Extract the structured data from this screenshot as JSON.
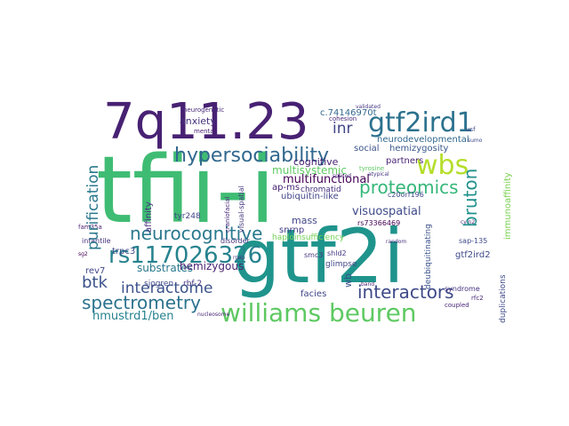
{
  "words": [
    {
      "text": "tfii-i",
      "color": "#3fbc73",
      "rotated": false
    },
    {
      "text": "gtf2i",
      "color": "#1f948c",
      "rotated": false
    },
    {
      "text": "7q11.23",
      "color": "#482173",
      "rotated": false
    },
    {
      "text": "williams beuren",
      "color": "#5ec962",
      "rotated": false
    },
    {
      "text": "gtf2ird1",
      "color": "#2c728e",
      "rotated": false
    },
    {
      "text": "hypersociability",
      "color": "#31688e",
      "rotated": false
    },
    {
      "text": "wbs",
      "color": "#b5de2b",
      "rotated": false
    },
    {
      "text": "rs117026326",
      "color": "#26828e",
      "rotated": false
    },
    {
      "text": "neurocognitive",
      "color": "#2a788e",
      "rotated": false
    },
    {
      "text": "proteomics",
      "color": "#35b779",
      "rotated": false
    },
    {
      "text": "bruton",
      "color": "#21918c",
      "rotated": false
    },
    {
      "text": "interactors",
      "color": "#3e4a89",
      "rotated": false
    },
    {
      "text": "spectrometry",
      "color": "#2c728e",
      "rotated": false
    },
    {
      "text": "interactome",
      "color": "#3b528b",
      "rotated": false
    },
    {
      "text": "purification",
      "color": "#2a788e",
      "rotated": true
    },
    {
      "text": "inr",
      "color": "#414487",
      "rotated": false
    },
    {
      "text": "btk",
      "color": "#3b528b",
      "rotated": false
    },
    {
      "text": "multifunctional",
      "color": "#440154",
      "rotated": false
    },
    {
      "text": "visuospatial",
      "color": "#3e4a89",
      "rotated": false
    },
    {
      "text": "hmustrd1/ben",
      "color": "#26828e",
      "rotated": false
    },
    {
      "text": "substrates",
      "color": "#2a788e",
      "rotated": false
    },
    {
      "text": "hemizygous",
      "color": "#481f70",
      "rotated": false
    },
    {
      "text": "c.74146970t",
      "color": "#31688e",
      "rotated": false
    },
    {
      "text": "anxiety",
      "color": "#46327e",
      "rotated": false
    },
    {
      "text": "cognitive",
      "color": "#482173",
      "rotated": false
    },
    {
      "text": "multisystemic",
      "color": "#5ec962",
      "rotated": false
    },
    {
      "text": "neurodevelopmental",
      "color": "#31688e",
      "rotated": false
    },
    {
      "text": "hemizygosity",
      "color": "#38598c",
      "rotated": false
    },
    {
      "text": "social",
      "color": "#3b528b",
      "rotated": false
    },
    {
      "text": "ap-ms",
      "color": "#482475",
      "rotated": false
    },
    {
      "text": "chromatid",
      "color": "#46327e",
      "rotated": false
    },
    {
      "text": "ubiquitin-like",
      "color": "#404688",
      "rotated": false
    },
    {
      "text": "mass",
      "color": "#404688",
      "rotated": false
    },
    {
      "text": "snrnp",
      "color": "#433e85",
      "rotated": false
    },
    {
      "text": "trpc3",
      "color": "#3e4989",
      "rotated": false
    },
    {
      "text": "rev7",
      "color": "#404688",
      "rotated": false
    },
    {
      "text": "affinity",
      "color": "#46327e",
      "rotated": true
    },
    {
      "text": "immunoaffinity",
      "color": "#7ad151",
      "rotated": true
    },
    {
      "text": "gtf2ird2",
      "color": "#3e4a89",
      "rotated": false
    },
    {
      "text": "partners",
      "color": "#482475",
      "rotated": false
    },
    {
      "text": "facies",
      "color": "#404688",
      "rotated": false
    },
    {
      "text": "wb",
      "color": "#3b528b",
      "rotated": true
    },
    {
      "text": "haploinsufficiency",
      "color": "#73d056",
      "rotated": false
    },
    {
      "text": "sjogren",
      "color": "#3e4a89",
      "rotated": false
    },
    {
      "text": "rbf-2",
      "color": "#453781",
      "rotated": false
    },
    {
      "text": "tyr248",
      "color": "#404688",
      "rotated": false
    },
    {
      "text": "glimpse",
      "color": "#404688",
      "rotated": false
    },
    {
      "text": "smc3",
      "color": "#453781",
      "rotated": false
    },
    {
      "text": "shld2",
      "color": "#453781",
      "rotated": false
    },
    {
      "text": "infantile",
      "color": "#46327e",
      "rotated": false
    },
    {
      "text": "disorder",
      "color": "#453781",
      "rotated": false
    },
    {
      "text": "deubiquitinating",
      "color": "#3b528b",
      "rotated": true
    },
    {
      "text": "duplications",
      "color": "#3e4a89",
      "rotated": true
    },
    {
      "text": "c20orf196",
      "color": "#3e4a89",
      "rotated": false
    },
    {
      "text": "rs73366469",
      "color": "#440154",
      "rotated": false
    },
    {
      "text": "tyrosine",
      "color": "#5ec962",
      "rotated": false
    },
    {
      "text": "mental",
      "color": "#481f70",
      "rotated": false
    },
    {
      "text": "neurogenetic",
      "color": "#482878",
      "rotated": false
    },
    {
      "text": "sap-135",
      "color": "#3e4989",
      "rotated": false
    },
    {
      "text": "syndrome",
      "color": "#46327e",
      "rotated": false
    },
    {
      "text": "coupled",
      "color": "#482878",
      "rotated": false
    },
    {
      "text": "rfc2",
      "color": "#482878",
      "rotated": false
    },
    {
      "text": "visual-spatial",
      "color": "#453781",
      "rotated": true
    },
    {
      "text": "craniofacial",
      "color": "#482878",
      "rotated": true
    },
    {
      "text": "fam35a",
      "color": "#481f70",
      "rotated": false
    },
    {
      "text": "cohesion",
      "color": "#482878",
      "rotated": false
    },
    {
      "text": "spliced",
      "color": "#482878",
      "rotated": false
    },
    {
      "text": "atypical",
      "color": "#453781",
      "rotated": false
    },
    {
      "text": "validated",
      "color": "#453781",
      "rotated": false
    },
    {
      "text": "usf",
      "color": "#3e4989",
      "rotated": false
    },
    {
      "text": "sumo",
      "color": "#3e4989",
      "rotated": false
    },
    {
      "text": "random",
      "color": "#46327e",
      "rotated": false
    },
    {
      "text": "band",
      "color": "#481f70",
      "rotated": false
    },
    {
      "text": "sg2",
      "color": "#440154",
      "rotated": false
    },
    {
      "text": "cyln2",
      "color": "#482878",
      "rotated": false
    },
    {
      "text": "rnap",
      "color": "#453781",
      "rotated": false
    },
    {
      "text": "nucleosome",
      "color": "#482878",
      "rotated": false
    }
  ]
}
